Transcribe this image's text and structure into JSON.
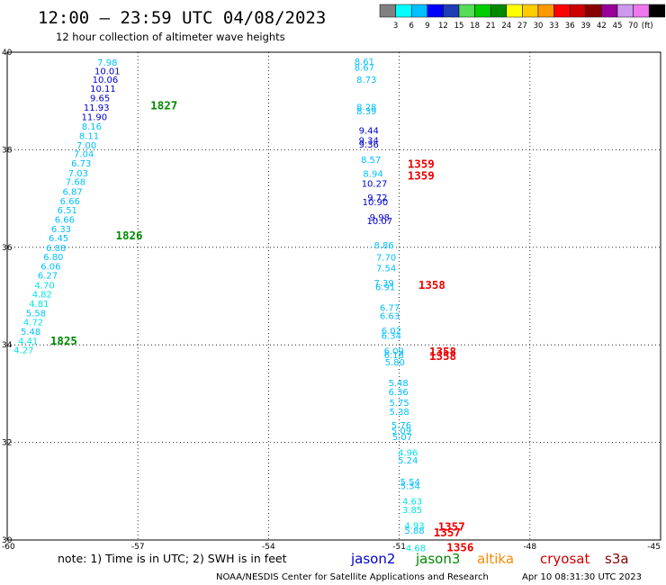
{
  "header": {
    "title": "12:00 — 23:59 UTC 04/08/2023",
    "subtitle": "12 hour collection of altimeter wave heights"
  },
  "colorbar": {
    "colors": [
      "#808080",
      "#00ffff",
      "#00bfff",
      "#0000ff",
      "#1e3cb4",
      "#55dd55",
      "#00cc00",
      "#008800",
      "#ffff00",
      "#ffcc00",
      "#ff9900",
      "#ff0000",
      "#cc0000",
      "#880000",
      "#990099",
      "#cc99ee",
      "#ee77ee",
      "#000000"
    ],
    "labels": [
      "3",
      "6",
      "9",
      "12",
      "15",
      "18",
      "21",
      "24",
      "27",
      "30",
      "33",
      "36",
      "39",
      "42",
      "45",
      "70",
      "(ft)"
    ]
  },
  "footer": {
    "note": "note:  1) Time is in UTC;  2) SWH is in feet",
    "satellites": [
      {
        "name": "jason2",
        "color": "#0000cc"
      },
      {
        "name": "jason3",
        "color": "#008800"
      },
      {
        "name": "altika",
        "color": "#ff8800"
      },
      {
        "name": "cryosat",
        "color": "#cc0000"
      },
      {
        "name": "s3a",
        "color": "#880000"
      }
    ],
    "credit": "NOAA/NESDIS Center for Satellite Applications and Research",
    "timestamp": "Apr 10 08:31:30 UTC 2023"
  },
  "chart_data": {
    "type": "scatter",
    "xlim": [
      -60,
      -45
    ],
    "ylim": [
      30,
      40
    ],
    "x_ticks": [
      "-60",
      "-57",
      "-54",
      "-51",
      "-48",
      "-45"
    ],
    "y_ticks": [
      "30",
      "32",
      "34",
      "36",
      "38",
      "40"
    ],
    "grid": true,
    "series": [
      {
        "name": "track-west",
        "points": [
          {
            "x": -57.7,
            "y": 39.8,
            "v": "7.98",
            "c": "#00bfff"
          },
          {
            "x": -57.7,
            "y": 39.62,
            "v": "10.01",
            "c": "#0000cc"
          },
          {
            "x": -57.75,
            "y": 39.45,
            "v": "10.06",
            "c": "#0000cc"
          },
          {
            "x": -57.8,
            "y": 39.26,
            "v": "10.11",
            "c": "#0000cc"
          },
          {
            "x": -57.87,
            "y": 39.07,
            "v": "9.65",
            "c": "#0000cc"
          },
          {
            "x": -57.95,
            "y": 38.87,
            "v": "11.93",
            "c": "#0000cc"
          },
          {
            "x": -58.0,
            "y": 38.68,
            "v": "11.90",
            "c": "#0000cc"
          },
          {
            "x": -58.06,
            "y": 38.49,
            "v": "8.16",
            "c": "#00bfff"
          },
          {
            "x": -58.12,
            "y": 38.29,
            "v": "8.11",
            "c": "#00bfff"
          },
          {
            "x": -58.18,
            "y": 38.1,
            "v": "7.00",
            "c": "#00bfff"
          },
          {
            "x": -58.24,
            "y": 37.92,
            "v": "7.04",
            "c": "#00bfff"
          },
          {
            "x": -58.3,
            "y": 37.73,
            "v": "6.73",
            "c": "#00bfff"
          },
          {
            "x": -58.37,
            "y": 37.53,
            "v": "7.03",
            "c": "#00bfff"
          },
          {
            "x": -58.43,
            "y": 37.35,
            "v": "7.68",
            "c": "#00bfff"
          },
          {
            "x": -58.5,
            "y": 37.15,
            "v": "6.87",
            "c": "#00bfff"
          },
          {
            "x": -58.56,
            "y": 36.96,
            "v": "6.66",
            "c": "#00bfff"
          },
          {
            "x": -58.62,
            "y": 36.77,
            "v": "6.51",
            "c": "#00bfff"
          },
          {
            "x": -58.68,
            "y": 36.58,
            "v": "6.66",
            "c": "#00bfff"
          },
          {
            "x": -58.76,
            "y": 36.38,
            "v": "6.33",
            "c": "#00bfff"
          },
          {
            "x": -58.82,
            "y": 36.2,
            "v": "6.45",
            "c": "#00bfff"
          },
          {
            "x": -58.88,
            "y": 36.0,
            "v": "6.88",
            "c": "#00bfff"
          },
          {
            "x": -58.94,
            "y": 35.81,
            "v": "6.80",
            "c": "#00bfff"
          },
          {
            "x": -59.0,
            "y": 35.62,
            "v": "6.06",
            "c": "#00bfff"
          },
          {
            "x": -59.07,
            "y": 35.43,
            "v": "6.27",
            "c": "#00bfff"
          },
          {
            "x": -59.14,
            "y": 35.23,
            "v": "4.70",
            "c": "#00e5e5"
          },
          {
            "x": -59.2,
            "y": 35.05,
            "v": "4.82",
            "c": "#00e5e5"
          },
          {
            "x": -59.27,
            "y": 34.85,
            "v": "4.81",
            "c": "#00e5e5"
          },
          {
            "x": -59.34,
            "y": 34.66,
            "v": "5.58",
            "c": "#00bfff"
          },
          {
            "x": -59.4,
            "y": 34.47,
            "v": "4.72",
            "c": "#00e5e5"
          },
          {
            "x": -59.46,
            "y": 34.28,
            "v": "5.48",
            "c": "#00bfff"
          },
          {
            "x": -59.52,
            "y": 34.09,
            "v": "4.41",
            "c": "#00e5e5"
          },
          {
            "x": -59.62,
            "y": 33.9,
            "v": "4.27",
            "c": "#00e5e5"
          }
        ]
      },
      {
        "name": "track-east",
        "points": [
          {
            "x": -51.8,
            "y": 39.82,
            "v": "8.61",
            "c": "#00bfff"
          },
          {
            "x": -51.8,
            "y": 39.7,
            "v": "8.67",
            "c": "#00bfff"
          },
          {
            "x": -51.75,
            "y": 39.45,
            "v": "8.73",
            "c": "#00bfff"
          },
          {
            "x": -51.75,
            "y": 38.88,
            "v": "8.28",
            "c": "#00bfff"
          },
          {
            "x": -51.75,
            "y": 38.8,
            "v": "8.39",
            "c": "#00bfff"
          },
          {
            "x": -51.7,
            "y": 38.4,
            "v": "9.44",
            "c": "#0000cc"
          },
          {
            "x": -51.7,
            "y": 38.2,
            "v": "9.34",
            "c": "#0000cc"
          },
          {
            "x": -51.7,
            "y": 38.12,
            "v": "9.36",
            "c": "#0000cc"
          },
          {
            "x": -51.65,
            "y": 37.8,
            "v": "8.57",
            "c": "#00bfff"
          },
          {
            "x": -51.6,
            "y": 37.52,
            "v": "8.94",
            "c": "#00bfff"
          },
          {
            "x": -51.57,
            "y": 37.32,
            "v": "10.27",
            "c": "#0000cc"
          },
          {
            "x": -51.5,
            "y": 37.03,
            "v": "9.72",
            "c": "#0000cc"
          },
          {
            "x": -51.55,
            "y": 36.94,
            "v": "10.90",
            "c": "#0000cc"
          },
          {
            "x": -51.45,
            "y": 36.62,
            "v": "9.98",
            "c": "#0000cc"
          },
          {
            "x": -51.45,
            "y": 36.55,
            "v": "10.07",
            "c": "#0000cc"
          },
          {
            "x": -51.35,
            "y": 36.05,
            "v": "8.86",
            "c": "#00bfff"
          },
          {
            "x": -51.3,
            "y": 35.8,
            "v": "7.70",
            "c": "#00bfff"
          },
          {
            "x": -51.3,
            "y": 35.58,
            "v": "7.54",
            "c": "#00bfff"
          },
          {
            "x": -51.35,
            "y": 35.28,
            "v": "7.39",
            "c": "#00bfff"
          },
          {
            "x": -51.32,
            "y": 35.19,
            "v": "6.91",
            "c": "#00bfff"
          },
          {
            "x": -51.22,
            "y": 34.77,
            "v": "6.77",
            "c": "#00bfff"
          },
          {
            "x": -51.22,
            "y": 34.6,
            "v": "6.63",
            "c": "#00bfff"
          },
          {
            "x": -51.18,
            "y": 34.3,
            "v": "6.02",
            "c": "#00bfff"
          },
          {
            "x": -51.18,
            "y": 34.2,
            "v": "6.34",
            "c": "#00bfff"
          },
          {
            "x": -51.12,
            "y": 33.88,
            "v": "6.09",
            "c": "#00bfff"
          },
          {
            "x": -51.12,
            "y": 33.8,
            "v": "6.18",
            "c": "#00bfff"
          },
          {
            "x": -51.1,
            "y": 33.65,
            "v": "5.80",
            "c": "#00bfff"
          },
          {
            "x": -51.02,
            "y": 33.23,
            "v": "5.48",
            "c": "#00bfff"
          },
          {
            "x": -51.02,
            "y": 33.04,
            "v": "6.36",
            "c": "#00bfff"
          },
          {
            "x": -51.0,
            "y": 32.82,
            "v": "5.75",
            "c": "#00bfff"
          },
          {
            "x": -51.0,
            "y": 32.64,
            "v": "5.38",
            "c": "#00bfff"
          },
          {
            "x": -50.95,
            "y": 32.36,
            "v": "5.76",
            "c": "#00bfff"
          },
          {
            "x": -50.95,
            "y": 32.25,
            "v": "5.09",
            "c": "#00bfff"
          },
          {
            "x": -50.93,
            "y": 32.12,
            "v": "5.07",
            "c": "#00bfff"
          },
          {
            "x": -50.8,
            "y": 31.8,
            "v": "4.96",
            "c": "#00e5e5"
          },
          {
            "x": -50.8,
            "y": 31.64,
            "v": "5.24",
            "c": "#00bfff"
          },
          {
            "x": -50.75,
            "y": 31.2,
            "v": "5.54",
            "c": "#00bfff"
          },
          {
            "x": -50.75,
            "y": 31.12,
            "v": "5.34",
            "c": "#00bfff"
          },
          {
            "x": -50.7,
            "y": 30.8,
            "v": "4.63",
            "c": "#00e5e5"
          },
          {
            "x": -50.7,
            "y": 30.63,
            "v": "3.85",
            "c": "#00e5e5"
          },
          {
            "x": -50.65,
            "y": 30.3,
            "v": "4.93",
            "c": "#00e5e5"
          },
          {
            "x": -50.65,
            "y": 30.2,
            "v": "5.88",
            "c": "#00bfff"
          },
          {
            "x": -50.62,
            "y": 29.84,
            "v": "4.68",
            "c": "#00e5e5"
          }
        ]
      }
    ],
    "time_labels": [
      {
        "x": -56.4,
        "y": 38.9,
        "t": "1827",
        "c": "#008800"
      },
      {
        "x": -57.2,
        "y": 36.24,
        "t": "1826",
        "c": "#008800"
      },
      {
        "x": -58.7,
        "y": 34.08,
        "t": "1825",
        "c": "#008800"
      },
      {
        "x": -50.5,
        "y": 37.7,
        "t": "1359",
        "c": "#ee0000"
      },
      {
        "x": -50.5,
        "y": 37.46,
        "t": "1359",
        "c": "#ee0000"
      },
      {
        "x": -50.25,
        "y": 35.22,
        "t": "1358",
        "c": "#ee0000"
      },
      {
        "x": -50.0,
        "y": 33.86,
        "t": "1358",
        "c": "#ee0000"
      },
      {
        "x": -50.0,
        "y": 33.76,
        "t": "1358",
        "c": "#ee0000"
      },
      {
        "x": -49.8,
        "y": 30.27,
        "t": "1357",
        "c": "#ee0000"
      },
      {
        "x": -49.9,
        "y": 30.15,
        "t": "1357",
        "c": "#ee0000"
      },
      {
        "x": -49.6,
        "y": 29.84,
        "t": "1356",
        "c": "#ee0000"
      }
    ]
  }
}
